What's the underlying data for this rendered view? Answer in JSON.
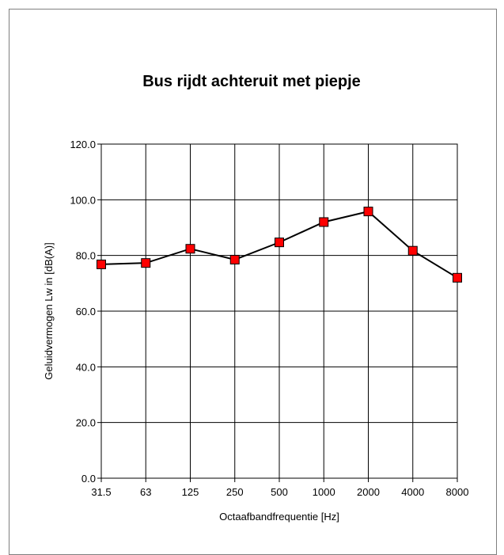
{
  "chart_data": {
    "type": "line",
    "title": "Bus rijdt achteruit met piepje",
    "xlabel": "Octaafbandfrequentie [Hz]",
    "ylabel": "Geluidvermogen Lw in  [dB(A)]",
    "categories": [
      "31.5",
      "63",
      "125",
      "250",
      "500",
      "1000",
      "2000",
      "4000",
      "8000"
    ],
    "series": [
      {
        "values": [
          76.8,
          77.3,
          82.4,
          78.5,
          84.7,
          92.0,
          95.8,
          81.7,
          72.0
        ]
      }
    ],
    "ylim": [
      0,
      120
    ],
    "yticks": [
      "0.0",
      "20.0",
      "40.0",
      "60.0",
      "80.0",
      "100.0",
      "120.0"
    ],
    "grid": true,
    "legend": "none",
    "colors": {
      "line": "#000000",
      "marker_fill": "#ff0000",
      "marker_stroke": "#000000",
      "grid": "#000000"
    }
  }
}
